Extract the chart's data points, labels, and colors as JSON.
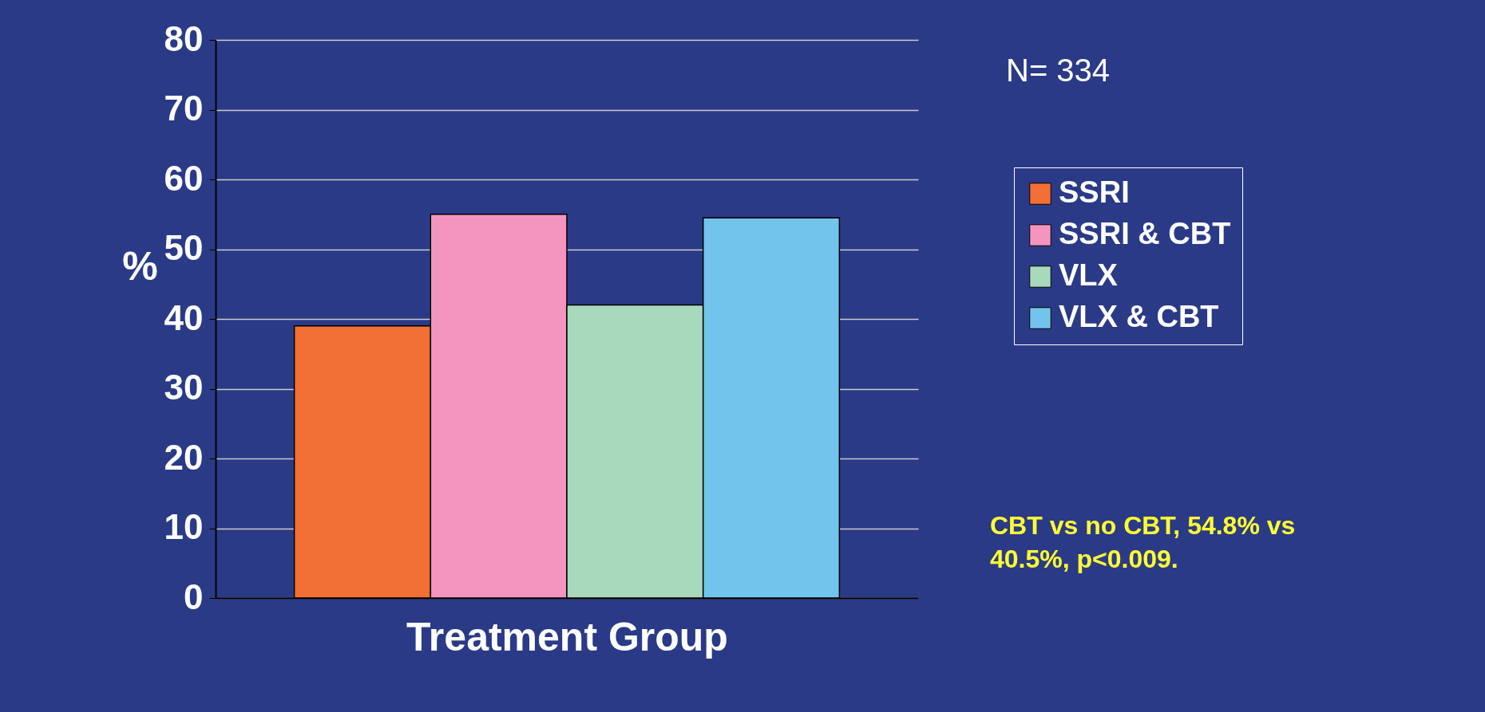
{
  "chart_data": {
    "type": "bar",
    "ylabel": "%",
    "xlabel": "Treatment Group",
    "categories": [
      null
    ],
    "series": [
      {
        "name": "SSRI",
        "color": "#f26f35",
        "values": [
          39
        ]
      },
      {
        "name": "SSRI & CBT",
        "color": "#f495c0",
        "values": [
          55
        ]
      },
      {
        "name": "VLX",
        "color": "#a9d9bc",
        "values": [
          42
        ]
      },
      {
        "name": "VLX & CBT",
        "color": "#73c4ec",
        "values": [
          54.5
        ]
      }
    ],
    "ylim": [
      0,
      80
    ],
    "yticks": [
      0,
      10,
      20,
      30,
      40,
      50,
      60,
      70,
      80
    ],
    "grid": "y",
    "legend": "right",
    "tick_labels": "y",
    "annotations": [
      "N= 334",
      "CBT vs no CBT, 54.8% vs\n40.5%,  p<0.009."
    ]
  }
}
